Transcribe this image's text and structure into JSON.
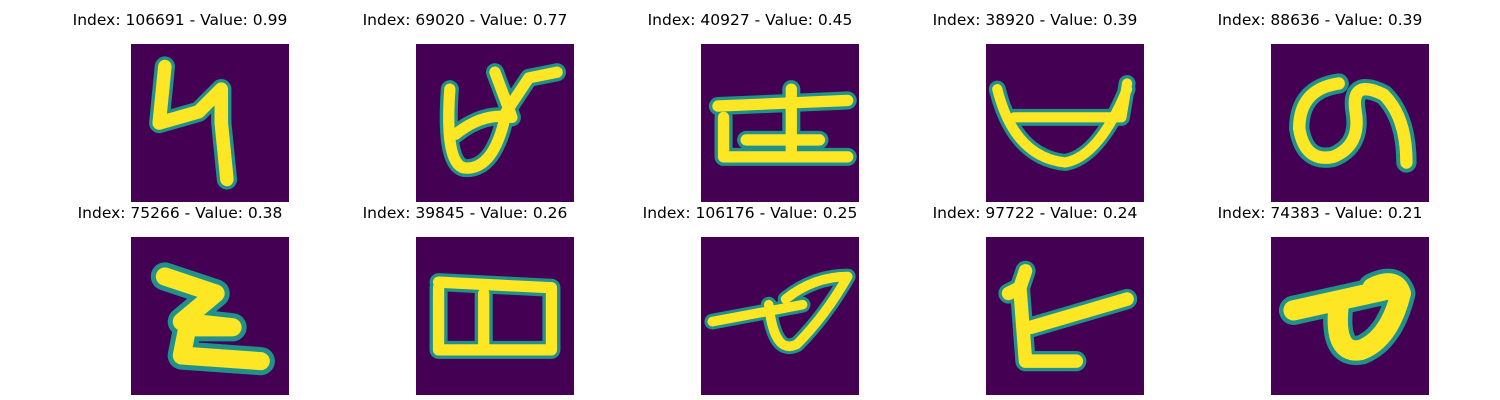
{
  "colors": {
    "background": "#440154",
    "glyph": "#fde725",
    "edge": "#21918c"
  },
  "panels": [
    {
      "title": "Index: 106691 - Value: 0.99",
      "glyph": "glyph-4-like"
    },
    {
      "title": "Index: 69020 - Value: 0.77",
      "glyph": "glyph-loop-cross"
    },
    {
      "title": "Index: 40927 - Value: 0.45",
      "glyph": "glyph-bar-frame"
    },
    {
      "title": "Index: 38920 - Value: 0.39",
      "glyph": "glyph-bowl"
    },
    {
      "title": "Index: 88636 - Value: 0.39",
      "glyph": "glyph-loop-tail"
    },
    {
      "title": "Index: 75266 - Value: 0.38",
      "glyph": "glyph-z-like"
    },
    {
      "title": "Index: 39845 - Value: 0.26",
      "glyph": "glyph-double-loop"
    },
    {
      "title": "Index: 106176 - Value: 0.25",
      "glyph": "glyph-leaf-stroke"
    },
    {
      "title": "Index: 97722 - Value: 0.24",
      "glyph": "glyph-angle-stroke"
    },
    {
      "title": "Index: 74383 - Value: 0.21",
      "glyph": "glyph-bold-loop"
    }
  ]
}
